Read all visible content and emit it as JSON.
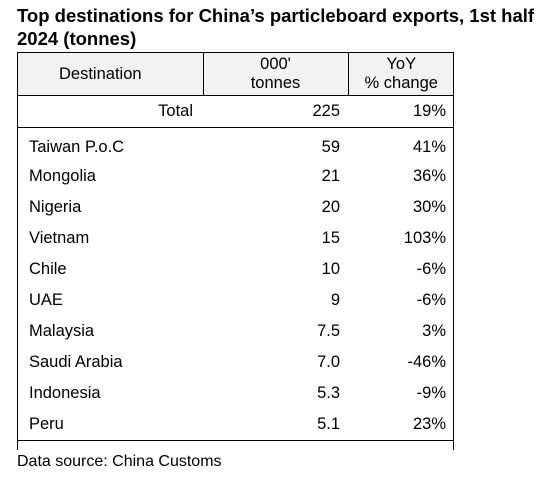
{
  "title": "Top destinations for China’s particleboard exports, 1st half 2024 (tonnes)",
  "table": {
    "headers": {
      "destination": "Destination",
      "volume_line1": "000'",
      "volume_line2": "tonnes",
      "change_line1": "YoY",
      "change_line2": "% change"
    },
    "total": {
      "label": "Total",
      "volume": "225",
      "change": "19%"
    },
    "rows": [
      {
        "destination": "Taiwan P.o.C",
        "volume": "59",
        "change": "41%"
      },
      {
        "destination": "Mongolia",
        "volume": "21",
        "change": "36%"
      },
      {
        "destination": "Nigeria",
        "volume": "20",
        "change": "30%"
      },
      {
        "destination": "Vietnam",
        "volume": "15",
        "change": "103%"
      },
      {
        "destination": "Chile",
        "volume": "10",
        "change": "-6%"
      },
      {
        "destination": "UAE",
        "volume": "9",
        "change": "-6%"
      },
      {
        "destination": "Malaysia",
        "volume": "7.5",
        "change": "3%"
      },
      {
        "destination": "Saudi Arabia",
        "volume": "7.0",
        "change": "-46%"
      },
      {
        "destination": "Indonesia",
        "volume": "5.3",
        "change": "-9%"
      },
      {
        "destination": "Peru",
        "volume": "5.1",
        "change": "23%"
      }
    ]
  },
  "source": "Data source: China Customs"
}
